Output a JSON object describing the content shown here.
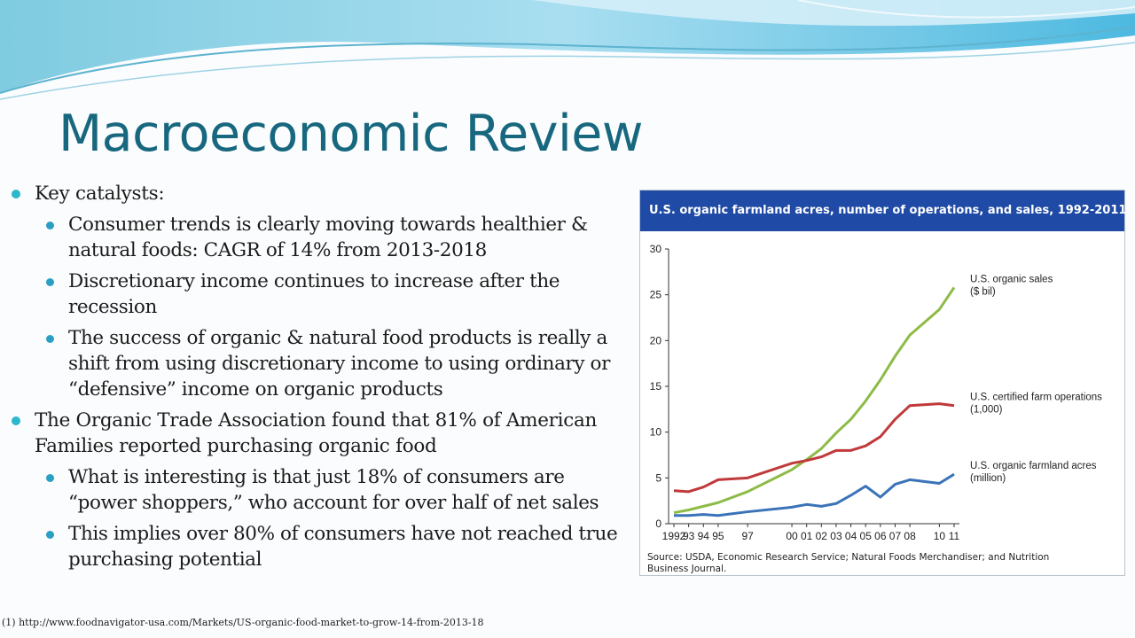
{
  "slide": {
    "title": "Macroeconomic Review",
    "bullets": {
      "catalysts": "Key catalysts:",
      "consumer_trends": "Consumer trends is clearly moving towards healthier & natural foods: CAGR of 14% from 2013-2018",
      "discretionary": "Discretionary income continues to increase after the recession",
      "success": "The success of organic & natural food products is really a shift from using discretionary income to using ordinary or “defensive” income on organic products",
      "ota": "The Organic Trade Association found that 81% of American Families reported purchasing organic food",
      "interesting": "What is interesting is that just 18% of consumers are “power shoppers,” who account for over half of net sales",
      "implies": "This implies over 80% of consumers have not reached true purchasing potential"
    },
    "footnote": "(1) http://www.foodnavigator-usa.com/Markets/US-organic-food-market-to-grow-14-from-2013-18"
  },
  "colors": {
    "title": "#17677f",
    "bullet": "#2bb7cc",
    "chart_header": "#1f4aa5",
    "sales": "#8dbb47",
    "operations": "#c0393b",
    "farmland": "#3b73b9"
  },
  "chart_data": {
    "type": "line",
    "title": "U.S. organic farmland acres, number of operations, and sales, 1992-2011",
    "x": [
      1992,
      1993,
      1994,
      1995,
      1997,
      2000,
      2001,
      2002,
      2003,
      2004,
      2005,
      2006,
      2007,
      2008,
      2010,
      2011
    ],
    "tick_labels": [
      "1992",
      "93",
      "94",
      "95",
      "97",
      "00",
      "01",
      "02",
      "03",
      "04",
      "05",
      "06",
      "07",
      "08",
      "10",
      "11"
    ],
    "ylim": [
      0,
      30
    ],
    "yticks": [
      0,
      5,
      10,
      15,
      20,
      25,
      30
    ],
    "grid": false,
    "series": [
      {
        "name": "U.S. organic sales ($ bil)",
        "color": "#8dbb47",
        "values": [
          1.2,
          1.5,
          1.9,
          2.3,
          3.5,
          5.9,
          7.0,
          8.2,
          9.9,
          11.4,
          13.4,
          15.7,
          18.3,
          20.6,
          23.4,
          25.8
        ]
      },
      {
        "name": "U.S. certified farm operations (1,000)",
        "color": "#c0393b",
        "values": [
          3.6,
          3.5,
          4.0,
          4.8,
          5.0,
          6.6,
          6.9,
          7.3,
          8.0,
          8.0,
          8.5,
          9.5,
          11.4,
          12.9,
          13.1,
          12.9
        ]
      },
      {
        "name": "U.S. organic farmland acres (million)",
        "color": "#3b73b9",
        "values": [
          0.9,
          0.9,
          1.0,
          0.9,
          1.3,
          1.8,
          2.1,
          1.9,
          2.2,
          3.1,
          4.1,
          2.9,
          4.3,
          4.8,
          4.4,
          5.4
        ]
      }
    ],
    "legend_placement": "right, at line ends",
    "source": "Source: USDA, Economic Research Service; Natural Foods Merchandiser; and Nutrition Business Journal."
  }
}
